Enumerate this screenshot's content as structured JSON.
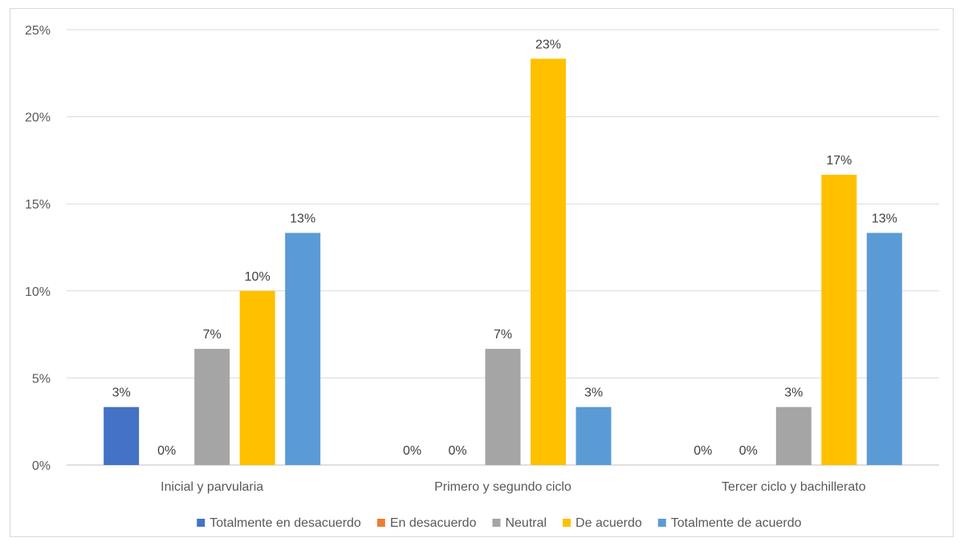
{
  "chart_data": {
    "type": "bar",
    "categories": [
      "Inicial y parvularia",
      "Primero y segundo ciclo",
      "Tercer ciclo y bachillerato"
    ],
    "series": [
      {
        "name": "Totalmente en desacuerdo",
        "color": "#4472C4",
        "values": [
          3.33,
          0,
          0
        ],
        "labels": [
          "3%",
          "0%",
          "0%"
        ]
      },
      {
        "name": "En desacuerdo",
        "color": "#ED7D31",
        "values": [
          0,
          0,
          0
        ],
        "labels": [
          "0%",
          "0%",
          "0%"
        ]
      },
      {
        "name": "Neutral",
        "color": "#A5A5A5",
        "values": [
          6.67,
          6.67,
          3.33
        ],
        "labels": [
          "7%",
          "7%",
          "3%"
        ]
      },
      {
        "name": "De acuerdo",
        "color": "#FFC000",
        "values": [
          10,
          23.33,
          16.67
        ],
        "labels": [
          "10%",
          "23%",
          "17%"
        ]
      },
      {
        "name": "Totalmente de acuerdo",
        "color": "#5B9BD5",
        "values": [
          13.33,
          3.33,
          13.33
        ],
        "labels": [
          "13%",
          "3%",
          "13%"
        ]
      }
    ],
    "y_ticks": [
      "0%",
      "5%",
      "10%",
      "15%",
      "20%",
      "25%"
    ],
    "ylim": [
      0,
      25
    ],
    "grid": true,
    "legend_position": "bottom",
    "title": "",
    "xlabel": "",
    "ylabel": ""
  }
}
